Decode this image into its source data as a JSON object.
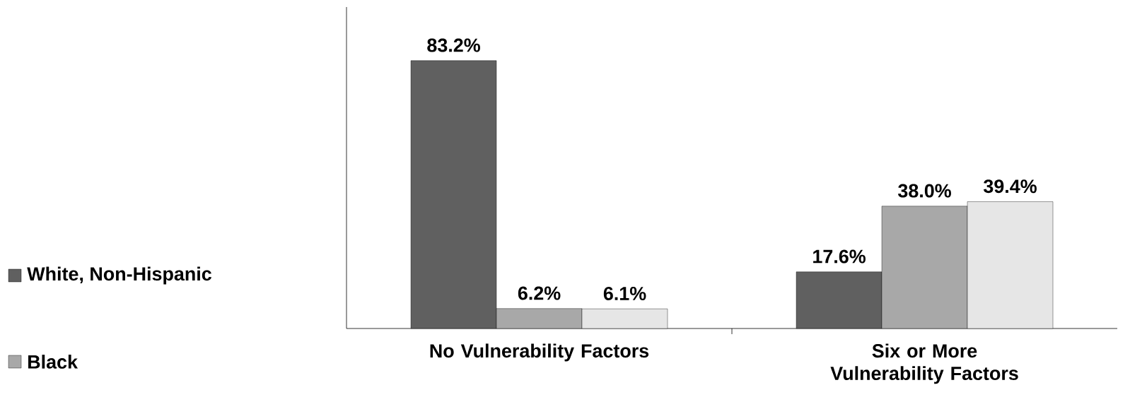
{
  "chart_data": {
    "type": "bar",
    "categories": [
      "No Vulnerability Factors",
      "Six or More Vulnerability Factors"
    ],
    "series": [
      {
        "name": "White, Non-Hispanic",
        "color": "#606060",
        "values": [
          83.2,
          17.6
        ],
        "value_labels": [
          "83.2%",
          "17.6%"
        ]
      },
      {
        "name": "Black",
        "color": "#a8a8a8",
        "values": [
          6.2,
          38.0
        ],
        "value_labels": [
          "6.2%",
          "38.0%"
        ]
      },
      {
        "color": "#e6e6e6",
        "values": [
          6.1,
          39.4
        ],
        "value_labels": [
          "6.1%",
          "39.4%"
        ]
      }
    ],
    "legend": "left"
  }
}
